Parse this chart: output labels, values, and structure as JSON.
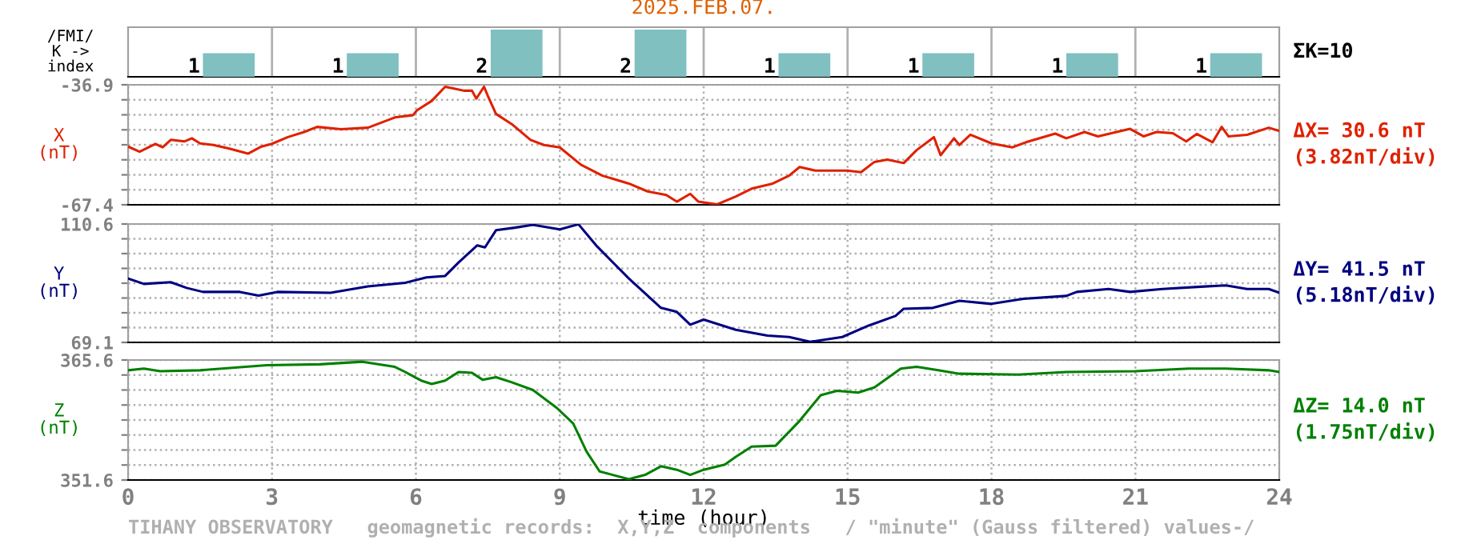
{
  "chart_data": [
    {
      "type": "bar",
      "title": "2025.FEB.07.",
      "ylabel": "/FMI/\nK ->\nindex",
      "categories": [
        null,
        null,
        null,
        null,
        null,
        null,
        null,
        null
      ],
      "values": [
        1,
        1,
        2,
        2,
        1,
        1,
        1,
        1
      ],
      "color": "#80c0c0",
      "data_labels": true,
      "tick_labels": false,
      "annotations": [
        "ΣK=10"
      ]
    },
    {
      "type": "line",
      "ylabel": "X\n(nT)",
      "series": [
        {
          "color": "#e02000",
          "x": [
            0,
            0.24,
            0.57,
            0.72,
            0.89,
            1.17,
            1.33,
            1.5,
            1.78,
            2.11,
            2.5,
            2.78,
            3.0,
            3.33,
            3.67,
            3.94,
            4.44,
            5.0,
            5.56,
            5.94,
            6.02,
            6.33,
            6.61,
            6.78,
            7.0,
            7.17,
            7.26,
            7.42,
            7.5,
            7.67,
            8.0,
            8.39,
            8.67,
            9.0,
            9.44,
            9.89,
            10.44,
            10.83,
            11.22,
            11.44,
            11.72,
            11.89,
            12.28,
            12.67,
            13.0,
            13.44,
            13.78,
            14.0,
            14.33,
            15.0,
            15.28,
            15.56,
            15.83,
            16.17,
            16.44,
            16.8,
            16.94,
            17.22,
            17.33,
            17.56,
            18.0,
            18.44,
            18.72,
            19.33,
            19.56,
            19.94,
            20.22,
            20.89,
            21.17,
            21.44,
            21.78,
            22.06,
            22.28,
            22.61,
            22.8,
            22.94,
            23.33,
            23.78,
            24.0
          ],
          "values": [
            -52.6,
            -53.9,
            -51.9,
            -52.8,
            -50.9,
            -51.3,
            -50.5,
            -51.8,
            -52.2,
            -53.1,
            -54.4,
            -52.6,
            -51.9,
            -50.2,
            -48.9,
            -47.6,
            -48.2,
            -47.8,
            -45.2,
            -44.6,
            -43.4,
            -41.0,
            -37.4,
            -37.8,
            -38.4,
            -38.4,
            -40.4,
            -37.4,
            -39.7,
            -44.3,
            -46.9,
            -50.9,
            -52.2,
            -52.8,
            -57.2,
            -60.0,
            -62.0,
            -64.0,
            -64.9,
            -66.6,
            -64.6,
            -66.6,
            -67.3,
            -65.3,
            -63.3,
            -62.0,
            -60.0,
            -57.8,
            -58.7,
            -58.7,
            -59.1,
            -56.5,
            -55.9,
            -56.8,
            -53.5,
            -50.2,
            -54.8,
            -50.5,
            -52.2,
            -49.6,
            -51.8,
            -52.8,
            -51.5,
            -49.3,
            -50.5,
            -48.9,
            -50.0,
            -48.1,
            -50.0,
            -48.9,
            -49.2,
            -51.3,
            -49.4,
            -51.5,
            -47.6,
            -50.0,
            -49.6,
            -47.8,
            -48.6
          ]
        }
      ],
      "xlim": [
        0,
        24
      ],
      "xticks": [
        0,
        3,
        6,
        9,
        12,
        15,
        18,
        21,
        24
      ],
      "ylim": [
        -67.4,
        -36.9
      ],
      "yticks": [
        -67.4,
        {
          "value": -63.59,
          "label": null
        },
        {
          "value": -59.78,
          "label": null
        },
        {
          "value": -55.96,
          "label": null
        },
        {
          "value": -52.15,
          "label": null
        },
        {
          "value": -48.34,
          "label": null
        },
        {
          "value": -44.53,
          "label": null
        },
        {
          "value": -40.71,
          "label": null
        },
        -36.9
      ],
      "tick_labels": "y",
      "grid": true,
      "annotations": [
        "ΔX= 30.6 nT",
        "(3.82nT/div)"
      ]
    },
    {
      "type": "line",
      "ylabel": "Y\n(nT)",
      "series": [
        {
          "color": "#000080",
          "x": [
            0,
            0.33,
            0.89,
            1.22,
            1.56,
            2.33,
            2.72,
            3.11,
            4.22,
            5.0,
            5.78,
            6.22,
            6.61,
            6.89,
            7.28,
            7.44,
            7.67,
            8.06,
            8.44,
            9.0,
            9.39,
            9.78,
            10.44,
            11.11,
            11.44,
            11.72,
            12.0,
            12.67,
            13.33,
            13.78,
            14.22,
            14.89,
            15.44,
            16.0,
            16.17,
            16.78,
            17.33,
            18.0,
            18.67,
            19.56,
            19.78,
            20.44,
            20.89,
            21.56,
            22.44,
            22.89,
            23.33,
            23.78,
            24.0
          ],
          "values": [
            91.5,
            89.6,
            90.2,
            88.2,
            86.8,
            86.8,
            85.5,
            86.8,
            86.5,
            88.7,
            90.0,
            91.9,
            92.4,
            97.1,
            103.1,
            102.4,
            108.4,
            109.3,
            110.3,
            108.7,
            110.5,
            102.7,
            91.5,
            81.2,
            79.8,
            75.3,
            77.1,
            73.5,
            71.5,
            71.0,
            69.3,
            71.0,
            75.0,
            78.4,
            80.9,
            81.2,
            83.7,
            82.6,
            84.4,
            85.4,
            86.8,
            87.8,
            86.8,
            87.8,
            88.7,
            89.1,
            87.8,
            87.8,
            86.5
          ]
        }
      ],
      "xlim": [
        0,
        24
      ],
      "xticks": [
        0,
        3,
        6,
        9,
        12,
        15,
        18,
        21,
        24
      ],
      "ylim": [
        69.1,
        110.6
      ],
      "yticks": [
        69.1,
        {
          "value": 74.29,
          "label": null
        },
        {
          "value": 79.48,
          "label": null
        },
        {
          "value": 84.66,
          "label": null
        },
        {
          "value": 89.85,
          "label": null
        },
        {
          "value": 95.04,
          "label": null
        },
        {
          "value": 100.23,
          "label": null
        },
        {
          "value": 105.41,
          "label": null
        },
        110.6
      ],
      "tick_labels": "y",
      "grid": true,
      "annotations": [
        "ΔY= 41.5 nT",
        "(5.18nT/div)"
      ]
    },
    {
      "type": "line",
      "ylabel": "Z\n(nT)",
      "xlabel": "time (hour)",
      "series": [
        {
          "color": "#008000",
          "x": [
            0,
            0.33,
            0.67,
            1.5,
            2.89,
            4.0,
            4.89,
            5.56,
            5.78,
            6.11,
            6.33,
            6.61,
            6.89,
            7.17,
            7.39,
            7.67,
            8.0,
            8.44,
            8.94,
            9.28,
            9.56,
            9.83,
            10.44,
            10.78,
            11.11,
            11.44,
            11.72,
            12.0,
            12.44,
            12.67,
            13.0,
            13.5,
            14.0,
            14.44,
            14.78,
            15.22,
            15.56,
            16.11,
            16.44,
            16.89,
            17.33,
            18.56,
            19.56,
            21.0,
            22.11,
            22.89,
            23.78,
            24.0
          ],
          "values": [
            364.4,
            364.6,
            364.3,
            364.4,
            365.0,
            365.1,
            365.4,
            364.8,
            364.2,
            363.2,
            362.8,
            363.2,
            364.2,
            364.1,
            363.3,
            363.6,
            363.0,
            362.1,
            360.0,
            358.2,
            354.9,
            352.6,
            351.7,
            352.2,
            353.2,
            352.8,
            352.2,
            352.8,
            353.4,
            354.3,
            355.5,
            355.6,
            358.5,
            361.5,
            362.0,
            361.8,
            362.4,
            364.6,
            364.8,
            364.4,
            364.0,
            363.9,
            364.2,
            364.3,
            364.6,
            364.6,
            364.4,
            364.2
          ]
        }
      ],
      "xlim": [
        0,
        24
      ],
      "xticks": [
        0,
        3,
        6,
        9,
        12,
        15,
        18,
        21,
        24
      ],
      "ylim": [
        351.6,
        365.6
      ],
      "yticks": [
        351.6,
        {
          "value": 353.35,
          "label": null
        },
        {
          "value": 355.1,
          "label": null
        },
        {
          "value": 356.85,
          "label": null
        },
        {
          "value": 358.6,
          "label": null
        },
        {
          "value": 360.35,
          "label": null
        },
        {
          "value": 362.1,
          "label": null
        },
        {
          "value": 363.85,
          "label": null
        },
        365.6
      ],
      "grid": true,
      "annotations": [
        "ΔZ= 14.0 nT",
        "(1.75nT/div)",
        "TIHANY OBSERVATORY   geomagnetic records:  X,Y,Z  components   / \"minute\" (Gauss filtered) values-/"
      ]
    }
  ]
}
